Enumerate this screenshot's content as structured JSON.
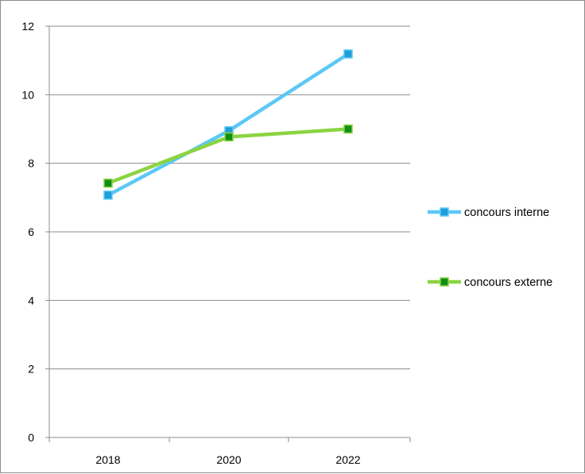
{
  "chart_data": {
    "type": "line",
    "title": "",
    "xlabel": "",
    "ylabel": "",
    "categories": [
      "2018",
      "2020",
      "2022"
    ],
    "ylim": [
      0,
      12
    ],
    "yticks": [
      0,
      2,
      4,
      6,
      8,
      10,
      12
    ],
    "grid": "horizontal",
    "legend_position": "right",
    "series": [
      {
        "name": "concours interne",
        "values": [
          7.07,
          8.95,
          11.19
        ],
        "color": "#5bc8f5",
        "marker_color": "#1f9ed8"
      },
      {
        "name": "concours externe",
        "values": [
          7.42,
          8.77,
          9.0
        ],
        "color": "#8cd341",
        "marker_color": "#0f8f1a"
      }
    ]
  }
}
